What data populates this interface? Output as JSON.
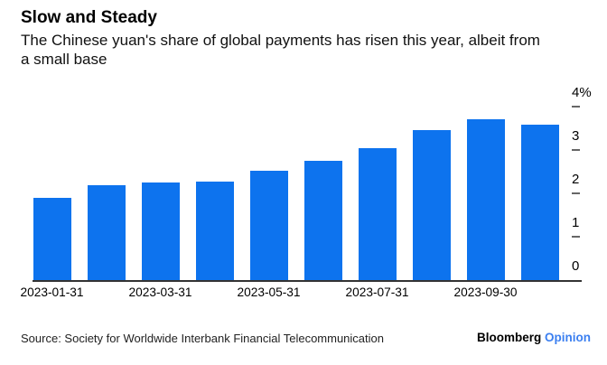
{
  "chart_data": {
    "type": "bar",
    "title": "Slow and Steady",
    "subtitle": "The Chinese yuan's share of global payments has risen this year, albeit from\na small base",
    "values": [
      1.91,
      2.19,
      2.26,
      2.29,
      2.54,
      2.77,
      3.06,
      3.47,
      3.71,
      3.6
    ],
    "unit": "%",
    "x_tick_labels": [
      {
        "bar_index": 0,
        "label": "2023-01-31"
      },
      {
        "bar_index": 2,
        "label": "2023-03-31"
      },
      {
        "bar_index": 4,
        "label": "2023-05-31"
      },
      {
        "bar_index": 6,
        "label": "2023-07-31"
      },
      {
        "bar_index": 8,
        "label": "2023-09-30"
      }
    ],
    "y_ticks": [
      {
        "value": 0,
        "label": "0"
      },
      {
        "value": 1,
        "label": "1"
      },
      {
        "value": 2,
        "label": "2"
      },
      {
        "value": 3,
        "label": "3"
      },
      {
        "value": 4,
        "label": "4%"
      }
    ],
    "ylim": [
      0,
      4
    ],
    "grid": "off",
    "legend": "none",
    "y_axis_side": "right",
    "bar_color": "#0d73ee",
    "axis_color": "#333333",
    "tick_color": "#666666"
  },
  "footer": {
    "source": "Source: Society for Worldwide Interbank Financial Telecommunication",
    "brand_name": "Bloomberg",
    "brand_suffix": "Opinion",
    "brand_suffix_color": "#3b7ff0"
  }
}
